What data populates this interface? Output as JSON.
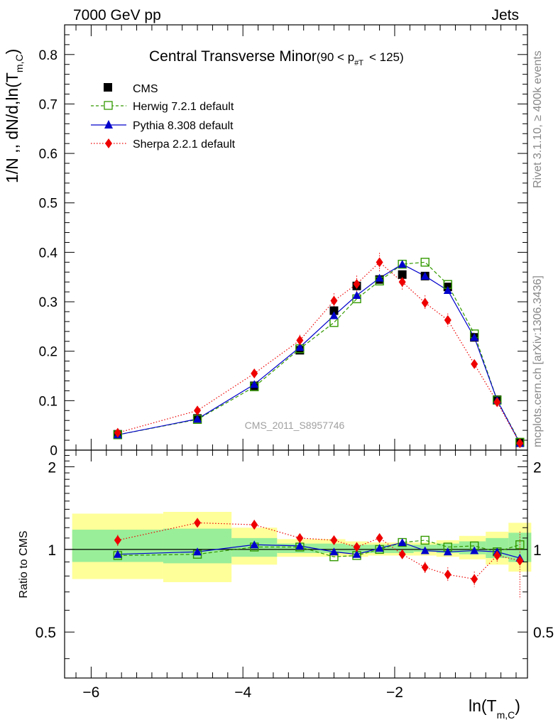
{
  "header": {
    "left": "7000 GeV pp",
    "right": "Jets"
  },
  "side_labels": {
    "rivet": "Rivet 3.1.10, ≥ 400k events",
    "mcplots": "mcplots.cern.ch [arXiv:1306.3436]"
  },
  "chart_data": [
    {
      "type": "scatter",
      "title": "Central Transverse Minor",
      "title_cut": "(90 < p",
      "title_cut_sub": "#T",
      "title_cut_end": "< 125)",
      "ylabel": "1/N ,, dN/d,ln(T",
      "ylabel_sub": "m,C",
      "ylabel_end": ")",
      "watermark": "CMS_2011_S8957746",
      "ylim": [
        0,
        0.86
      ],
      "yticks": [
        "0",
        "0.1",
        "0.2",
        "0.3",
        "0.4",
        "0.5",
        "0.6",
        "0.7",
        "0.8"
      ],
      "xlim": [
        -6.35,
        -0.25
      ],
      "legend_position": "top-left",
      "x": [
        -5.65,
        -4.6,
        -3.85,
        -3.25,
        -2.8,
        -2.5,
        -2.2,
        -1.9,
        -1.6,
        -1.3,
        -0.95,
        -0.65,
        -0.35
      ],
      "series": [
        {
          "name": "CMS",
          "color": "#000000",
          "marker": "square",
          "values": [
            0.032,
            0.064,
            0.13,
            0.202,
            0.282,
            0.332,
            0.345,
            0.355,
            0.352,
            0.33,
            0.228,
            0.102,
            0.015
          ]
        },
        {
          "name": "Herwig 7.2.1 default",
          "color": "#339900",
          "marker": "open-square",
          "dash": "dashed",
          "values": [
            0.031,
            0.062,
            0.128,
            0.205,
            0.258,
            0.306,
            0.342,
            0.376,
            0.38,
            0.335,
            0.235,
            0.101,
            0.016
          ]
        },
        {
          "name": "Pythia 8.308 default",
          "color": "#0000cc",
          "marker": "triangle",
          "dash": "solid",
          "values": [
            0.031,
            0.063,
            0.133,
            0.208,
            0.272,
            0.313,
            0.348,
            0.376,
            0.352,
            0.323,
            0.228,
            0.101,
            0.014
          ]
        },
        {
          "name": "Sherpa 2.2.1 default",
          "color": "#ee0000",
          "marker": "diamond",
          "dash": "dotted",
          "values": [
            0.035,
            0.08,
            0.155,
            0.222,
            0.302,
            0.336,
            0.38,
            0.34,
            0.298,
            0.263,
            0.174,
            0.097,
            0.014
          ]
        }
      ]
    },
    {
      "type": "scatter",
      "ylabel": "Ratio to CMS",
      "xlabel": "ln(T",
      "xlabel_sub": "m,C",
      "xlabel_end": ")",
      "xticks": [
        {
          "v": -6,
          "label": "−6"
        },
        {
          "v": -4,
          "label": "−4"
        },
        {
          "v": -2,
          "label": "−2"
        }
      ],
      "ylim": [
        0.34,
        2.3
      ],
      "yticks": [
        {
          "v": 0.5,
          "label": "0.5"
        },
        {
          "v": 1,
          "label": "1"
        },
        {
          "v": 2,
          "label": "2"
        }
      ],
      "bands": [
        {
          "x0": -6.25,
          "x1": -5.05,
          "green": [
            0.9,
            1.18
          ],
          "yellow": [
            0.78,
            1.35
          ]
        },
        {
          "x0": -5.05,
          "x1": -4.15,
          "green": [
            0.89,
            1.19
          ],
          "yellow": [
            0.76,
            1.37
          ]
        },
        {
          "x0": -4.15,
          "x1": -3.55,
          "green": [
            0.94,
            1.1
          ],
          "yellow": [
            0.88,
            1.2
          ]
        },
        {
          "x0": -3.55,
          "x1": -2.65,
          "green": [
            0.97,
            1.05
          ],
          "yellow": [
            0.94,
            1.09
          ]
        },
        {
          "x0": -2.65,
          "x1": -2.35,
          "green": [
            0.97,
            1.04
          ],
          "yellow": [
            0.94,
            1.07
          ]
        },
        {
          "x0": -2.35,
          "x1": -1.75,
          "green": [
            0.97,
            1.04
          ],
          "yellow": [
            0.95,
            1.06
          ]
        },
        {
          "x0": -1.75,
          "x1": -1.45,
          "green": [
            0.98,
            1.04
          ],
          "yellow": [
            0.95,
            1.06
          ]
        },
        {
          "x0": -1.45,
          "x1": -1.15,
          "green": [
            0.97,
            1.05
          ],
          "yellow": [
            0.94,
            1.08
          ]
        },
        {
          "x0": -1.15,
          "x1": -0.8,
          "green": [
            0.96,
            1.07
          ],
          "yellow": [
            0.92,
            1.12
          ]
        },
        {
          "x0": -0.8,
          "x1": -0.5,
          "green": [
            0.93,
            1.1
          ],
          "yellow": [
            0.88,
            1.16
          ]
        },
        {
          "x0": -0.5,
          "x1": -0.2,
          "green": [
            0.9,
            1.15
          ],
          "yellow": [
            0.83,
            1.25
          ]
        }
      ],
      "x": [
        -5.65,
        -4.6,
        -3.85,
        -3.25,
        -2.8,
        -2.5,
        -2.2,
        -1.9,
        -1.6,
        -1.3,
        -0.95,
        -0.65,
        -0.35
      ],
      "series": [
        {
          "name": "Herwig 7.2.1 default",
          "color": "#339900",
          "marker": "open-square",
          "dash": "dashed",
          "values": [
            0.95,
            0.96,
            1.02,
            1.02,
            0.94,
            0.95,
            1.0,
            1.06,
            1.08,
            1.02,
            1.03,
            0.98,
            1.04
          ]
        },
        {
          "name": "Pythia 8.308 default",
          "color": "#0000cc",
          "marker": "triangle",
          "dash": "solid",
          "values": [
            0.96,
            0.98,
            1.04,
            1.03,
            0.98,
            0.96,
            1.01,
            1.06,
            0.99,
            0.98,
            0.99,
            0.98,
            0.93
          ]
        },
        {
          "name": "Sherpa 2.2.1 default",
          "color": "#ee0000",
          "marker": "diamond",
          "dash": "dotted",
          "values": [
            1.08,
            1.25,
            1.23,
            1.1,
            1.08,
            1.02,
            1.1,
            0.96,
            0.86,
            0.81,
            0.78,
            0.95,
            0.91
          ]
        }
      ],
      "sherpa_err": [
        0.05,
        0.05,
        0.05,
        0.04,
        0.04,
        0.04,
        0.04,
        0.04,
        0.04,
        0.05,
        0.05,
        0.06,
        0.25
      ]
    }
  ]
}
